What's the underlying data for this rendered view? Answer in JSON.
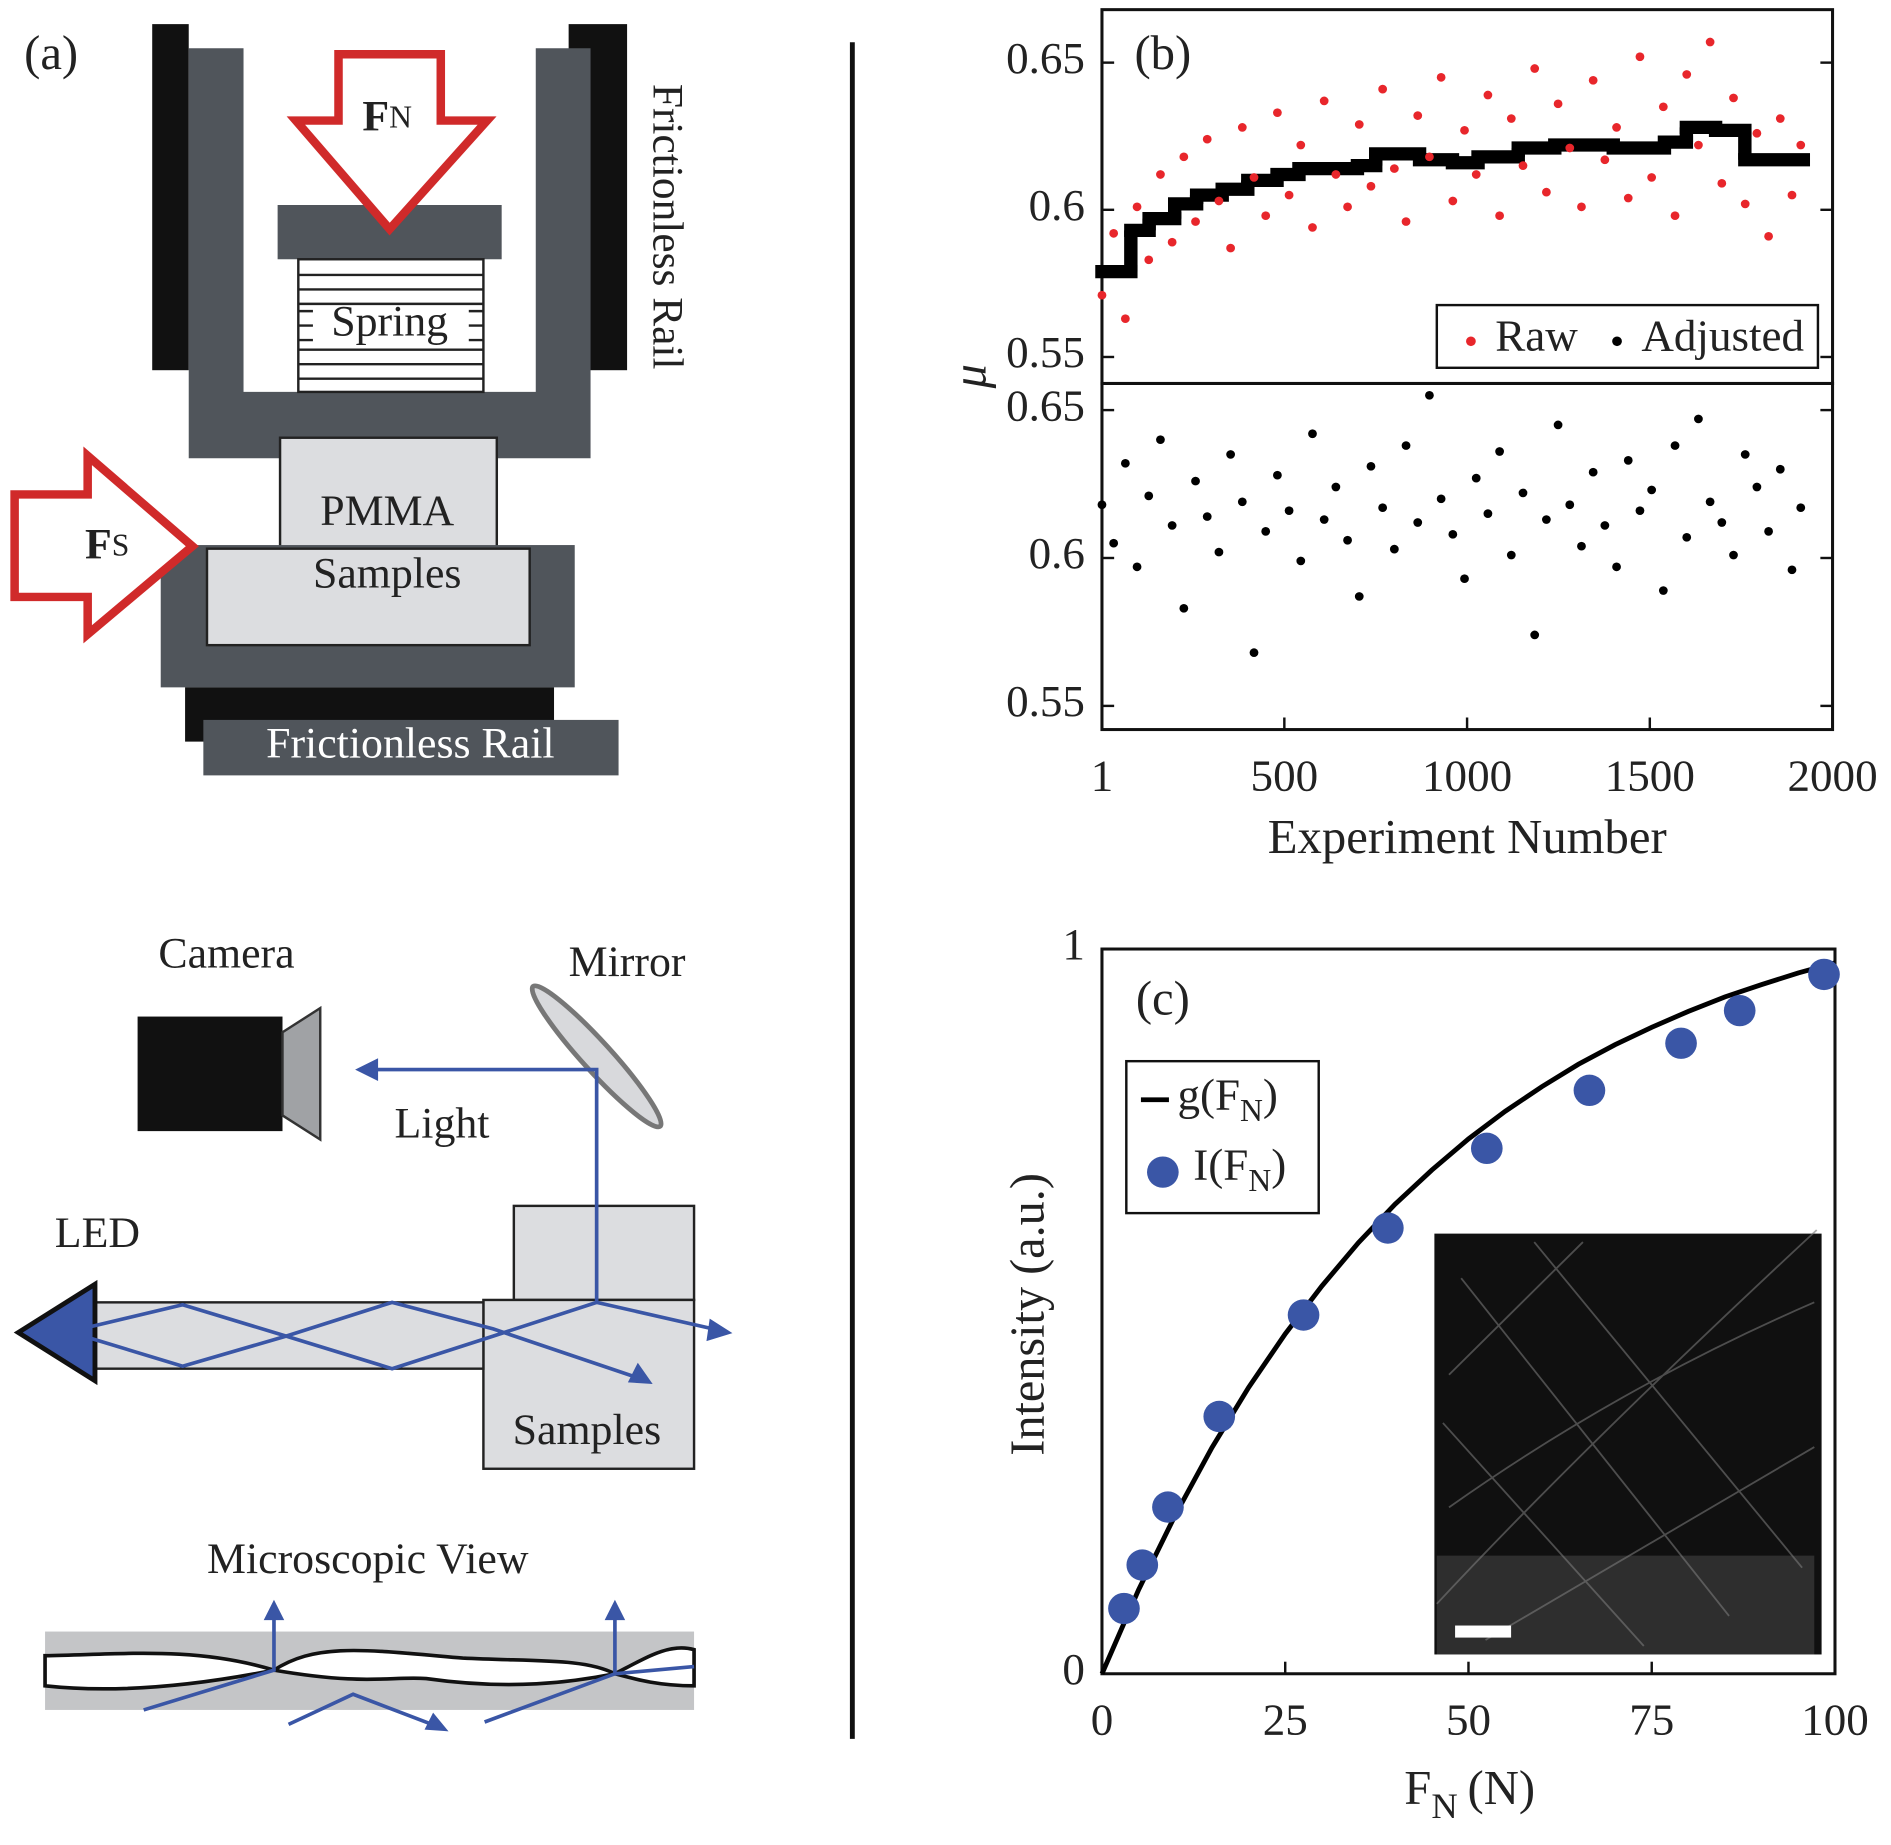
{
  "diagram": {
    "panel_label": "(a)",
    "normal_force": {
      "text": "F",
      "sub": "N"
    },
    "spring": "Spring",
    "rail_vertical": "Frictionless Rail",
    "pmma": "PMMA",
    "samples_top": "Samples",
    "shear_force": {
      "text": "F",
      "sub": "S"
    },
    "rail_bottom": "Frictionless Rail",
    "camera": "Camera",
    "mirror": "Mirror",
    "light": "Light",
    "led": "LED",
    "samples_bottom": "Samples",
    "microscopic_view": "Microscopic View"
  },
  "chart_data": [
    {
      "type": "scatter",
      "panel_label": "(b)",
      "ylabel": "μ",
      "xlim": [
        1,
        2000
      ],
      "ylim": [
        0.541,
        0.668
      ],
      "yticks": [
        0.55,
        0.6,
        0.65
      ],
      "legend": "lower right",
      "series": [
        {
          "name": "Raw",
          "color": "#e8262b",
          "x": [
            1,
            33,
            65,
            97,
            129,
            161,
            193,
            225,
            257,
            289,
            321,
            353,
            385,
            417,
            449,
            481,
            513,
            545,
            577,
            609,
            641,
            673,
            705,
            737,
            769,
            801,
            833,
            865,
            897,
            929,
            961,
            993,
            1025,
            1057,
            1089,
            1121,
            1153,
            1185,
            1217,
            1249,
            1281,
            1313,
            1345,
            1377,
            1409,
            1441,
            1473,
            1505,
            1537,
            1569,
            1601,
            1633,
            1665,
            1697,
            1729,
            1761,
            1793,
            1825,
            1857,
            1889,
            1913
          ],
          "values": [
            0.571,
            0.592,
            0.563,
            0.601,
            0.583,
            0.612,
            0.589,
            0.618,
            0.596,
            0.624,
            0.603,
            0.587,
            0.628,
            0.611,
            0.598,
            0.633,
            0.605,
            0.622,
            0.594,
            0.637,
            0.612,
            0.601,
            0.629,
            0.608,
            0.641,
            0.614,
            0.596,
            0.632,
            0.618,
            0.645,
            0.603,
            0.627,
            0.612,
            0.639,
            0.598,
            0.631,
            0.615,
            0.648,
            0.606,
            0.636,
            0.621,
            0.601,
            0.644,
            0.617,
            0.628,
            0.604,
            0.652,
            0.611,
            0.635,
            0.598,
            0.646,
            0.622,
            0.657,
            0.609,
            0.638,
            0.602,
            0.626,
            0.591,
            0.631,
            0.605,
            0.622
          ]
        }
      ],
      "step_line": {
        "color": "#000000",
        "x": [
          1,
          80,
          130,
          200,
          260,
          330,
          400,
          480,
          540,
          700,
          750,
          870,
          960,
          1030,
          1140,
          1240,
          1400,
          1540,
          1600,
          1680,
          1760
        ],
        "x_end": 1920,
        "values": [
          0.579,
          0.593,
          0.597,
          0.602,
          0.605,
          0.607,
          0.61,
          0.612,
          0.614,
          0.615,
          0.619,
          0.617,
          0.616,
          0.618,
          0.621,
          0.622,
          0.621,
          0.623,
          0.628,
          0.627,
          0.617
        ]
      }
    },
    {
      "type": "scatter",
      "xlabel": "Experiment Number",
      "xlim": [
        1,
        2000
      ],
      "ylim": [
        0.542,
        0.659
      ],
      "xticks": [
        1,
        500,
        1000,
        1500,
        2000
      ],
      "yticks": [
        0.55,
        0.6,
        0.65
      ],
      "series": [
        {
          "name": "Adjusted",
          "color": "#000000",
          "x": [
            1,
            33,
            65,
            97,
            129,
            161,
            193,
            225,
            257,
            289,
            321,
            353,
            385,
            417,
            449,
            481,
            513,
            545,
            577,
            609,
            641,
            673,
            705,
            737,
            769,
            801,
            833,
            865,
            897,
            929,
            961,
            993,
            1025,
            1057,
            1089,
            1121,
            1153,
            1185,
            1217,
            1249,
            1281,
            1313,
            1345,
            1377,
            1409,
            1441,
            1473,
            1505,
            1537,
            1569,
            1601,
            1633,
            1665,
            1697,
            1729,
            1761,
            1793,
            1825,
            1857,
            1889,
            1913
          ],
          "values": [
            0.618,
            0.605,
            0.632,
            0.597,
            0.621,
            0.64,
            0.611,
            0.583,
            0.626,
            0.614,
            0.602,
            0.635,
            0.619,
            0.568,
            0.609,
            0.628,
            0.616,
            0.599,
            0.642,
            0.613,
            0.624,
            0.606,
            0.587,
            0.631,
            0.617,
            0.603,
            0.638,
            0.612,
            0.655,
            0.62,
            0.608,
            0.593,
            0.627,
            0.615,
            0.636,
            0.601,
            0.622,
            0.574,
            0.613,
            0.645,
            0.618,
            0.604,
            0.629,
            0.611,
            0.597,
            0.633,
            0.616,
            0.623,
            0.589,
            0.638,
            0.607,
            0.647,
            0.619,
            0.612,
            0.601,
            0.635,
            0.624,
            0.609,
            0.63,
            0.596,
            0.617
          ]
        }
      ]
    },
    {
      "type": "scatter",
      "panel_label": "(c)",
      "xlabel": {
        "text": "F",
        "sub": "N",
        "unit": "(N)"
      },
      "ylabel": "Intensity (a.u.)",
      "xlim": [
        0,
        100
      ],
      "ylim": [
        0,
        1
      ],
      "xticks": [
        0,
        25,
        50,
        75,
        100
      ],
      "yticks": [
        0,
        1
      ],
      "legend": "upper left",
      "series": [
        {
          "name": {
            "text": "I(F",
            "sub": "N",
            "end": ")"
          },
          "color": "#3a56a6",
          "x": [
            3,
            5.5,
            9,
            16,
            27.5,
            39,
            52.5,
            66.5,
            79,
            87,
            98.5
          ],
          "values": [
            0.09,
            0.15,
            0.23,
            0.355,
            0.495,
            0.615,
            0.725,
            0.805,
            0.87,
            0.915,
            0.965
          ]
        }
      ],
      "fit_line": {
        "name": {
          "text": "g(F",
          "sub": "N",
          "end": ")"
        },
        "color": "#000000",
        "x": [
          0,
          5,
          10,
          15,
          20,
          25,
          30,
          35,
          40,
          45,
          50,
          55,
          60,
          65,
          70,
          75,
          80,
          85,
          90,
          95,
          100
        ],
        "values": [
          0,
          0.116,
          0.219,
          0.312,
          0.395,
          0.469,
          0.535,
          0.595,
          0.648,
          0.695,
          0.738,
          0.776,
          0.81,
          0.841,
          0.868,
          0.892,
          0.914,
          0.934,
          0.951,
          0.967,
          0.981
        ]
      }
    }
  ]
}
